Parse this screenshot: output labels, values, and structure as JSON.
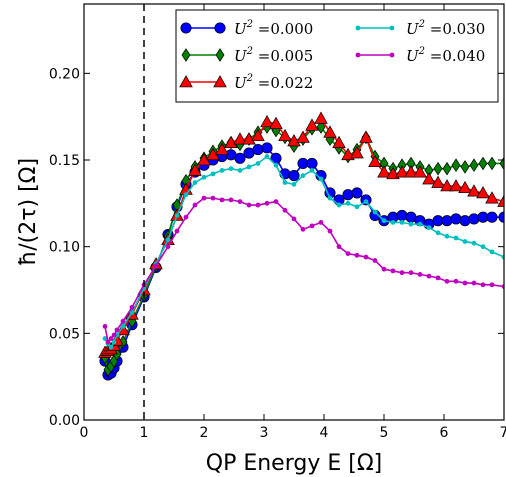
{
  "chart_data": {
    "type": "line",
    "xlabel": "QP Energy E [Ω]",
    "ylabel": "ħ/(2τ) [Ω]",
    "xlim": [
      0,
      7
    ],
    "ylim": [
      0,
      0.24
    ],
    "xticks": [
      0,
      1,
      2,
      3,
      4,
      5,
      6,
      7
    ],
    "xtick_labels": [
      "0",
      "1",
      "2",
      "3",
      "4",
      "5",
      "6",
      "7"
    ],
    "yticks": [
      0.0,
      0.05,
      0.1,
      0.15,
      0.2
    ],
    "ytick_labels": [
      "0.00",
      "0.05",
      "0.10",
      "0.15",
      "0.20"
    ],
    "grid": false,
    "legend_position": "top-right",
    "vline": {
      "x": 1,
      "style": "dashed",
      "color": "#000000"
    },
    "series": [
      {
        "name": "U² = 0.000",
        "legend_prefix": "U",
        "legend_sup": "2",
        "legend_value": "=0.000",
        "color": "#0000ff",
        "marker": "circle",
        "x": [
          0.35,
          0.4,
          0.45,
          0.5,
          0.55,
          0.65,
          0.8,
          1.0,
          1.2,
          1.4,
          1.55,
          1.7,
          1.85,
          2.0,
          2.15,
          2.3,
          2.45,
          2.6,
          2.75,
          2.9,
          3.05,
          3.2,
          3.35,
          3.5,
          3.65,
          3.8,
          3.95,
          4.1,
          4.25,
          4.4,
          4.55,
          4.7,
          4.85,
          5.0,
          5.15,
          5.3,
          5.45,
          5.6,
          5.75,
          5.9,
          6.05,
          6.2,
          6.35,
          6.5,
          6.65,
          6.8,
          7.0
        ],
        "y": [
          0.034,
          0.026,
          0.027,
          0.03,
          0.034,
          0.042,
          0.055,
          0.071,
          0.088,
          0.107,
          0.123,
          0.136,
          0.143,
          0.147,
          0.15,
          0.152,
          0.153,
          0.151,
          0.154,
          0.156,
          0.157,
          0.151,
          0.142,
          0.141,
          0.148,
          0.148,
          0.141,
          0.131,
          0.127,
          0.13,
          0.131,
          0.127,
          0.118,
          0.115,
          0.117,
          0.118,
          0.117,
          0.115,
          0.113,
          0.115,
          0.115,
          0.116,
          0.115,
          0.116,
          0.117,
          0.117,
          0.117
        ]
      },
      {
        "name": "U² = 0.005",
        "legend_prefix": "U",
        "legend_sup": "2",
        "legend_value": "=0.005",
        "color": "#008000",
        "marker": "diamond",
        "x": [
          0.35,
          0.4,
          0.45,
          0.5,
          0.55,
          0.65,
          0.8,
          1.0,
          1.2,
          1.4,
          1.55,
          1.7,
          1.85,
          2.0,
          2.15,
          2.3,
          2.45,
          2.6,
          2.75,
          2.9,
          3.05,
          3.2,
          3.35,
          3.5,
          3.65,
          3.8,
          3.95,
          4.1,
          4.25,
          4.4,
          4.55,
          4.7,
          4.85,
          5.0,
          5.15,
          5.3,
          5.45,
          5.6,
          5.75,
          5.9,
          6.05,
          6.2,
          6.35,
          6.5,
          6.65,
          6.8,
          7.0
        ],
        "y": [
          0.036,
          0.029,
          0.031,
          0.034,
          0.038,
          0.045,
          0.057,
          0.072,
          0.089,
          0.106,
          0.124,
          0.138,
          0.146,
          0.151,
          0.155,
          0.158,
          0.16,
          0.159,
          0.162,
          0.166,
          0.169,
          0.167,
          0.163,
          0.158,
          0.162,
          0.168,
          0.169,
          0.162,
          0.157,
          0.152,
          0.156,
          0.163,
          0.152,
          0.148,
          0.145,
          0.147,
          0.148,
          0.146,
          0.144,
          0.145,
          0.145,
          0.147,
          0.146,
          0.147,
          0.148,
          0.148,
          0.148
        ]
      },
      {
        "name": "U² = 0.022",
        "legend_prefix": "U",
        "legend_sup": "2",
        "legend_value": "=0.022",
        "color": "#ff0000",
        "marker": "triangle",
        "x": [
          0.35,
          0.4,
          0.45,
          0.5,
          0.55,
          0.65,
          0.8,
          1.0,
          1.2,
          1.4,
          1.55,
          1.7,
          1.85,
          2.0,
          2.15,
          2.3,
          2.45,
          2.6,
          2.75,
          2.9,
          3.05,
          3.2,
          3.35,
          3.5,
          3.65,
          3.8,
          3.95,
          4.1,
          4.25,
          4.4,
          4.55,
          4.7,
          4.85,
          5.0,
          5.15,
          5.3,
          5.45,
          5.6,
          5.75,
          5.9,
          6.05,
          6.2,
          6.35,
          6.5,
          6.65,
          6.8,
          7.0
        ],
        "y": [
          0.039,
          0.04,
          0.041,
          0.043,
          0.046,
          0.052,
          0.061,
          0.075,
          0.09,
          0.104,
          0.118,
          0.133,
          0.144,
          0.15,
          0.153,
          0.156,
          0.16,
          0.162,
          0.162,
          0.164,
          0.172,
          0.171,
          0.164,
          0.161,
          0.163,
          0.17,
          0.174,
          0.166,
          0.16,
          0.153,
          0.154,
          0.163,
          0.149,
          0.143,
          0.142,
          0.143,
          0.143,
          0.143,
          0.139,
          0.137,
          0.135,
          0.135,
          0.134,
          0.132,
          0.131,
          0.128,
          0.126
        ]
      },
      {
        "name": "U² = 0.030",
        "legend_prefix": "U",
        "legend_sup": "2",
        "legend_value": "=0.030",
        "color": "#00bfbf",
        "marker": "dot",
        "x": [
          0.35,
          0.4,
          0.45,
          0.5,
          0.55,
          0.65,
          0.8,
          1.0,
          1.2,
          1.4,
          1.55,
          1.7,
          1.85,
          2.0,
          2.15,
          2.3,
          2.45,
          2.6,
          2.75,
          2.9,
          3.05,
          3.2,
          3.35,
          3.5,
          3.65,
          3.8,
          3.95,
          4.1,
          4.25,
          4.4,
          4.55,
          4.7,
          4.85,
          5.0,
          5.15,
          5.3,
          5.45,
          5.6,
          5.75,
          5.9,
          6.05,
          6.2,
          6.35,
          6.5,
          6.65,
          6.8,
          7.0
        ],
        "y": [
          0.047,
          0.044,
          0.042,
          0.045,
          0.049,
          0.054,
          0.062,
          0.076,
          0.09,
          0.104,
          0.118,
          0.13,
          0.137,
          0.14,
          0.142,
          0.144,
          0.145,
          0.144,
          0.146,
          0.148,
          0.152,
          0.147,
          0.137,
          0.136,
          0.141,
          0.144,
          0.139,
          0.128,
          0.124,
          0.125,
          0.123,
          0.126,
          0.12,
          0.115,
          0.114,
          0.114,
          0.113,
          0.113,
          0.111,
          0.108,
          0.106,
          0.105,
          0.103,
          0.102,
          0.1,
          0.097,
          0.094
        ]
      },
      {
        "name": "U² = 0.040",
        "legend_prefix": "U",
        "legend_sup": "2",
        "legend_value": "=0.040",
        "color": "#bf00bf",
        "marker": "dot",
        "x": [
          0.35,
          0.4,
          0.45,
          0.5,
          0.55,
          0.65,
          0.8,
          1.0,
          1.2,
          1.4,
          1.55,
          1.7,
          1.85,
          2.0,
          2.15,
          2.3,
          2.45,
          2.6,
          2.75,
          2.9,
          3.05,
          3.2,
          3.35,
          3.5,
          3.65,
          3.8,
          3.95,
          4.1,
          4.25,
          4.4,
          4.55,
          4.7,
          4.85,
          5.0,
          5.15,
          5.3,
          5.45,
          5.6,
          5.75,
          5.9,
          6.05,
          6.2,
          6.35,
          6.5,
          6.65,
          6.8,
          7.0
        ],
        "y": [
          0.054,
          0.045,
          0.047,
          0.049,
          0.052,
          0.057,
          0.065,
          0.078,
          0.089,
          0.1,
          0.109,
          0.117,
          0.124,
          0.128,
          0.128,
          0.127,
          0.127,
          0.126,
          0.124,
          0.124,
          0.125,
          0.126,
          0.121,
          0.116,
          0.11,
          0.112,
          0.114,
          0.109,
          0.1,
          0.096,
          0.095,
          0.094,
          0.092,
          0.087,
          0.086,
          0.085,
          0.085,
          0.084,
          0.083,
          0.082,
          0.08,
          0.08,
          0.079,
          0.079,
          0.078,
          0.078,
          0.077
        ]
      }
    ]
  }
}
